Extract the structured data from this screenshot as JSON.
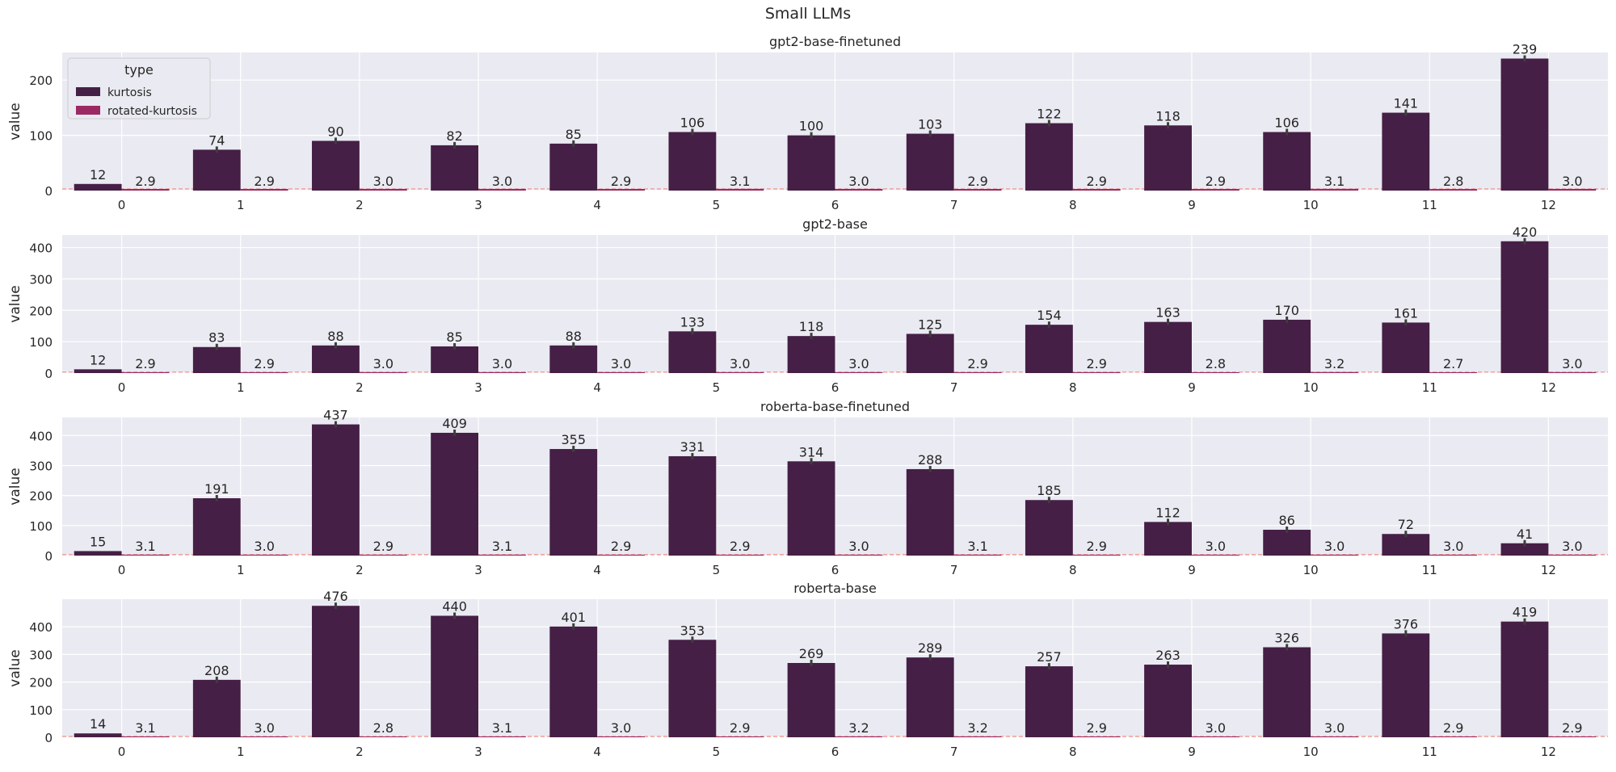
{
  "figure": {
    "suptitle": "Small LLMs"
  },
  "chart_data": [
    {
      "type": "bar",
      "title": "gpt2-base-finetuned",
      "xlabel": "",
      "ylabel": "value",
      "categories": [
        "0",
        "1",
        "2",
        "3",
        "4",
        "5",
        "6",
        "7",
        "8",
        "9",
        "10",
        "11",
        "12"
      ],
      "series": [
        {
          "name": "kurtosis",
          "values": [
            12,
            74,
            90,
            82,
            85,
            106,
            100,
            103,
            122,
            118,
            106,
            141,
            239
          ]
        },
        {
          "name": "rotated-kurtosis",
          "values": [
            2.9,
            2.9,
            3.0,
            3.0,
            2.9,
            3.1,
            3.0,
            2.9,
            2.9,
            2.9,
            3.1,
            2.8,
            3.0
          ]
        }
      ],
      "series_labels": [
        [
          "12",
          "74",
          "90",
          "82",
          "85",
          "106",
          "100",
          "103",
          "122",
          "118",
          "106",
          "141",
          "239"
        ],
        [
          "2.9",
          "2.9",
          "3.0",
          "3.0",
          "2.9",
          "3.1",
          "3.0",
          "2.9",
          "2.9",
          "2.9",
          "3.1",
          "2.8",
          "3.0"
        ]
      ],
      "ylim": [
        0,
        250
      ],
      "yticks": [
        0,
        100,
        200
      ],
      "grid": true,
      "legend": {
        "title": "type",
        "placement": "upper-left"
      },
      "reference_line": 3
    },
    {
      "type": "bar",
      "title": "gpt2-base",
      "xlabel": "",
      "ylabel": "value",
      "categories": [
        "0",
        "1",
        "2",
        "3",
        "4",
        "5",
        "6",
        "7",
        "8",
        "9",
        "10",
        "11",
        "12"
      ],
      "series": [
        {
          "name": "kurtosis",
          "values": [
            12,
            83,
            88,
            85,
            88,
            133,
            118,
            125,
            154,
            163,
            170,
            161,
            420
          ]
        },
        {
          "name": "rotated-kurtosis",
          "values": [
            2.9,
            2.9,
            3.0,
            3.0,
            3.0,
            3.0,
            3.0,
            2.9,
            2.9,
            2.8,
            3.2,
            2.7,
            3.0
          ]
        }
      ],
      "series_labels": [
        [
          "12",
          "83",
          "88",
          "85",
          "88",
          "133",
          "118",
          "125",
          "154",
          "163",
          "170",
          "161",
          "420"
        ],
        [
          "2.9",
          "2.9",
          "3.0",
          "3.0",
          "3.0",
          "3.0",
          "3.0",
          "2.9",
          "2.9",
          "2.8",
          "3.2",
          "2.7",
          "3.0"
        ]
      ],
      "ylim": [
        0,
        440
      ],
      "yticks": [
        0,
        100,
        200,
        300,
        400
      ],
      "grid": true,
      "reference_line": 3
    },
    {
      "type": "bar",
      "title": "roberta-base-finetuned",
      "xlabel": "",
      "ylabel": "value",
      "categories": [
        "0",
        "1",
        "2",
        "3",
        "4",
        "5",
        "6",
        "7",
        "8",
        "9",
        "10",
        "11",
        "12"
      ],
      "series": [
        {
          "name": "kurtosis",
          "values": [
            15,
            191,
            437,
            409,
            355,
            331,
            314,
            288,
            185,
            112,
            86,
            72,
            41
          ]
        },
        {
          "name": "rotated-kurtosis",
          "values": [
            3.1,
            3.0,
            2.9,
            3.1,
            2.9,
            2.9,
            3.0,
            3.1,
            2.9,
            3.0,
            3.0,
            3.0,
            3.0
          ]
        }
      ],
      "series_labels": [
        [
          "15",
          "191",
          "437",
          "409",
          "355",
          "331",
          "314",
          "288",
          "185",
          "112",
          "86",
          "72",
          "41"
        ],
        [
          "3.1",
          "3.0",
          "2.9",
          "3.1",
          "2.9",
          "2.9",
          "3.0",
          "3.1",
          "2.9",
          "3.0",
          "3.0",
          "3.0",
          "3.0"
        ]
      ],
      "ylim": [
        0,
        460
      ],
      "yticks": [
        0,
        100,
        200,
        300,
        400
      ],
      "grid": true,
      "reference_line": 3
    },
    {
      "type": "bar",
      "title": "roberta-base",
      "xlabel": "",
      "ylabel": "value",
      "categories": [
        "0",
        "1",
        "2",
        "3",
        "4",
        "5",
        "6",
        "7",
        "8",
        "9",
        "10",
        "11",
        "12"
      ],
      "series": [
        {
          "name": "kurtosis",
          "values": [
            14,
            208,
            476,
            440,
            401,
            353,
            269,
            289,
            257,
            263,
            326,
            376,
            419
          ]
        },
        {
          "name": "rotated-kurtosis",
          "values": [
            3.1,
            3.0,
            2.8,
            3.1,
            3.0,
            2.9,
            3.2,
            3.2,
            2.9,
            3.0,
            3.0,
            2.9,
            2.9
          ]
        }
      ],
      "series_labels": [
        [
          "14",
          "208",
          "476",
          "440",
          "401",
          "353",
          "269",
          "289",
          "257",
          "263",
          "326",
          "376",
          "419"
        ],
        [
          "3.1",
          "3.0",
          "2.8",
          "3.1",
          "3.0",
          "2.9",
          "3.2",
          "3.2",
          "2.9",
          "3.0",
          "3.0",
          "2.9",
          "2.9"
        ]
      ],
      "ylim": [
        0,
        500
      ],
      "yticks": [
        0,
        100,
        200,
        300,
        400
      ],
      "grid": true,
      "reference_line": 3
    }
  ],
  "colors": {
    "kurtosis": "#451f45",
    "rotated-kurtosis": "#9b2a63",
    "reference_line": "#f08a80",
    "plot_background": "#eaeaf2",
    "grid": "#ffffff",
    "error_bar": "#3d3d3d"
  }
}
